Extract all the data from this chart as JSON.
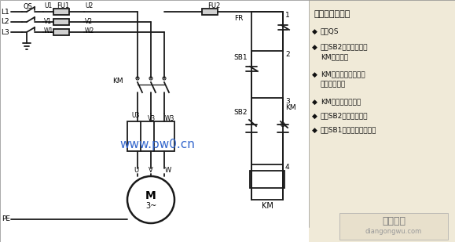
{
  "bg_color": "#f0ead8",
  "circuit_bg": "#ffffff",
  "right_bg": "#f0ead8",
  "line_color": "#1a1a1a",
  "watermark": "www.pw0.cn",
  "watermark_color": "#3366cc",
  "brand": "电工之屋",
  "brand_sub": "diangongwu.com",
  "workflow_title": "工作流程分析：",
  "workflow_items": [
    [
      "闭合QS"
    ],
    [
      "按下SB2控制电路闭合",
      "KM线圈得电"
    ],
    [
      "KM主触点闭合主线路",
      "接通电机启动"
    ],
    [
      "KM辅触点闭合自锁"
    ],
    [
      "松开SB2电机保持转动"
    ],
    [
      "按下SB1电路失电电机停转"
    ]
  ],
  "lw": 1.3,
  "lw_thick": 1.8
}
